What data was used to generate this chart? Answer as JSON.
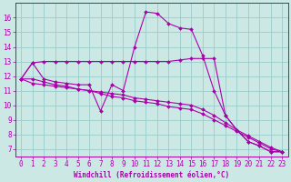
{
  "xlabel": "Windchill (Refroidissement éolien,°C)",
  "background_color": "#cce8e4",
  "line_color": "#aa00aa",
  "grid_color": "#99cccc",
  "text_color": "#aa00aa",
  "xlim": [
    -0.5,
    23.5
  ],
  "ylim": [
    6.5,
    17.0
  ],
  "xticks": [
    0,
    1,
    2,
    3,
    4,
    5,
    6,
    7,
    8,
    9,
    10,
    11,
    12,
    13,
    14,
    15,
    16,
    17,
    18,
    19,
    20,
    21,
    22,
    23
  ],
  "yticks": [
    7,
    8,
    9,
    10,
    11,
    12,
    13,
    14,
    15,
    16
  ],
  "series": [
    {
      "x": [
        0,
        1,
        2,
        3,
        4,
        5,
        6,
        7,
        8,
        9,
        10,
        11,
        12,
        13,
        14,
        15,
        16,
        17,
        18,
        19,
        20,
        21,
        22,
        23
      ],
      "y": [
        11.8,
        12.9,
        11.8,
        11.6,
        11.5,
        11.4,
        11.4,
        9.6,
        11.4,
        11.0,
        14.0,
        16.4,
        16.3,
        15.6,
        15.3,
        15.2,
        13.4,
        11.0,
        9.3,
        8.3,
        7.5,
        7.2,
        6.8,
        6.8
      ]
    },
    {
      "x": [
        0,
        1,
        2,
        3,
        4,
        5,
        6,
        7,
        8,
        9,
        10,
        11,
        12,
        13,
        14,
        15,
        16,
        17,
        18,
        19,
        20,
        21,
        22,
        23
      ],
      "y": [
        11.8,
        11.5,
        11.4,
        11.3,
        11.2,
        11.1,
        11.0,
        10.9,
        10.8,
        10.7,
        10.5,
        10.4,
        10.3,
        10.2,
        10.1,
        10.0,
        9.7,
        9.3,
        8.8,
        8.3,
        7.9,
        7.5,
        7.1,
        6.8
      ]
    },
    {
      "x": [
        0,
        1,
        2,
        3,
        4,
        5,
        6,
        7,
        8,
        9,
        10,
        11,
        12,
        13,
        14,
        15,
        16,
        17,
        18,
        19,
        20,
        21,
        22,
        23
      ],
      "y": [
        11.8,
        11.8,
        11.6,
        11.4,
        11.3,
        11.1,
        11.0,
        10.8,
        10.6,
        10.5,
        10.3,
        10.2,
        10.1,
        9.9,
        9.8,
        9.7,
        9.4,
        9.0,
        8.6,
        8.2,
        7.8,
        7.4,
        7.0,
        6.8
      ]
    },
    {
      "x": [
        0,
        1,
        2,
        3,
        4,
        5,
        6,
        7,
        8,
        9,
        10,
        11,
        12,
        13,
        14,
        15,
        16,
        17,
        18,
        19,
        20,
        21,
        22,
        23
      ],
      "y": [
        11.8,
        12.9,
        13.0,
        13.0,
        13.0,
        13.0,
        13.0,
        13.0,
        13.0,
        13.0,
        13.0,
        13.0,
        13.0,
        13.0,
        13.1,
        13.2,
        13.2,
        13.2,
        9.3,
        8.3,
        7.5,
        7.2,
        6.8,
        6.8
      ]
    }
  ]
}
